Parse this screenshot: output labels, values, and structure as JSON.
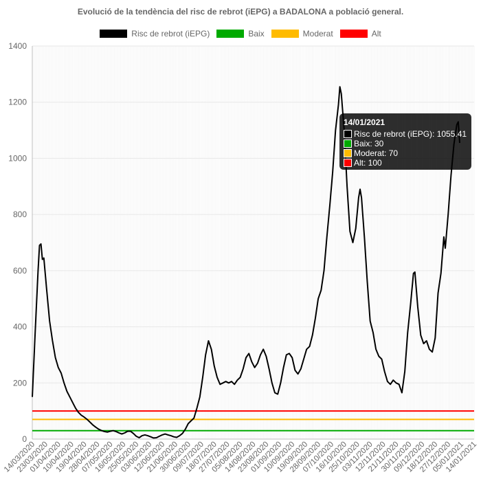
{
  "chart_data": {
    "type": "line",
    "title": "Evolució de la tendència del risc de rebrot (iEPG) a BADALONA a població general.",
    "ylim": [
      0,
      1400
    ],
    "yticks": [
      0,
      200,
      400,
      600,
      800,
      1000,
      1200,
      1400
    ],
    "grid": true,
    "legend_position": "top",
    "x_start": "14/03/2020",
    "x_end": "14/01/2021",
    "xtick_labels": [
      "14/03/2020",
      "23/03/2020",
      "01/04/2020",
      "10/04/2020",
      "19/04/2020",
      "28/04/2020",
      "07/05/2020",
      "16/05/2020",
      "25/05/2020",
      "03/06/2020",
      "12/06/2020",
      "21/06/2020",
      "30/06/2020",
      "09/07/2020",
      "18/07/2020",
      "27/07/2020",
      "05/08/2020",
      "14/08/2020",
      "23/08/2020",
      "01/09/2020",
      "10/09/2020",
      "19/09/2020",
      "28/09/2020",
      "07/10/2020",
      "16/10/2020",
      "25/10/2020",
      "03/11/2020",
      "12/11/2020",
      "21/11/2020",
      "30/11/2020",
      "09/12/2020",
      "18/12/2020",
      "27/12/2020",
      "05/01/2021",
      "14/01/2021"
    ],
    "series": [
      {
        "name": "Risc de rebrot (iEPG)",
        "color": "#000000",
        "points": [
          [
            "14/03/2020",
            150
          ],
          [
            "16/03/2020",
            380
          ],
          [
            "18/03/2020",
            600
          ],
          [
            "19/03/2020",
            690
          ],
          [
            "20/03/2020",
            695
          ],
          [
            "21/03/2020",
            640
          ],
          [
            "22/03/2020",
            645
          ],
          [
            "24/03/2020",
            530
          ],
          [
            "26/03/2020",
            420
          ],
          [
            "28/03/2020",
            350
          ],
          [
            "30/03/2020",
            290
          ],
          [
            "01/04/2020",
            255
          ],
          [
            "03/04/2020",
            235
          ],
          [
            "05/04/2020",
            200
          ],
          [
            "07/04/2020",
            170
          ],
          [
            "09/04/2020",
            150
          ],
          [
            "11/04/2020",
            130
          ],
          [
            "13/04/2020",
            110
          ],
          [
            "15/04/2020",
            95
          ],
          [
            "17/04/2020",
            85
          ],
          [
            "19/04/2020",
            78
          ],
          [
            "21/04/2020",
            70
          ],
          [
            "23/04/2020",
            60
          ],
          [
            "25/04/2020",
            50
          ],
          [
            "27/04/2020",
            42
          ],
          [
            "29/04/2020",
            35
          ],
          [
            "01/05/2020",
            30
          ],
          [
            "03/05/2020",
            27
          ],
          [
            "05/05/2020",
            25
          ],
          [
            "07/05/2020",
            28
          ],
          [
            "09/05/2020",
            30
          ],
          [
            "11/05/2020",
            27
          ],
          [
            "13/05/2020",
            22
          ],
          [
            "15/05/2020",
            18
          ],
          [
            "17/05/2020",
            22
          ],
          [
            "19/05/2020",
            28
          ],
          [
            "21/05/2020",
            28
          ],
          [
            "23/05/2020",
            20
          ],
          [
            "25/05/2020",
            10
          ],
          [
            "27/05/2020",
            5
          ],
          [
            "29/05/2020",
            12
          ],
          [
            "31/05/2020",
            15
          ],
          [
            "02/06/2020",
            12
          ],
          [
            "04/06/2020",
            8
          ],
          [
            "06/06/2020",
            4
          ],
          [
            "08/06/2020",
            5
          ],
          [
            "10/06/2020",
            10
          ],
          [
            "12/06/2020",
            15
          ],
          [
            "14/06/2020",
            18
          ],
          [
            "16/06/2020",
            15
          ],
          [
            "18/06/2020",
            12
          ],
          [
            "20/06/2020",
            8
          ],
          [
            "22/06/2020",
            6
          ],
          [
            "24/06/2020",
            12
          ],
          [
            "26/06/2020",
            20
          ],
          [
            "28/06/2020",
            35
          ],
          [
            "30/06/2020",
            55
          ],
          [
            "02/07/2020",
            65
          ],
          [
            "04/07/2020",
            75
          ],
          [
            "06/07/2020",
            110
          ],
          [
            "08/07/2020",
            150
          ],
          [
            "10/07/2020",
            220
          ],
          [
            "12/07/2020",
            300
          ],
          [
            "14/07/2020",
            350
          ],
          [
            "16/07/2020",
            320
          ],
          [
            "18/07/2020",
            260
          ],
          [
            "20/07/2020",
            220
          ],
          [
            "22/07/2020",
            195
          ],
          [
            "24/07/2020",
            200
          ],
          [
            "26/07/2020",
            205
          ],
          [
            "28/07/2020",
            200
          ],
          [
            "30/07/2020",
            205
          ],
          [
            "01/08/2020",
            195
          ],
          [
            "03/08/2020",
            210
          ],
          [
            "05/08/2020",
            220
          ],
          [
            "07/08/2020",
            250
          ],
          [
            "09/08/2020",
            290
          ],
          [
            "11/08/2020",
            305
          ],
          [
            "13/08/2020",
            275
          ],
          [
            "15/08/2020",
            255
          ],
          [
            "17/08/2020",
            270
          ],
          [
            "19/08/2020",
            300
          ],
          [
            "21/08/2020",
            320
          ],
          [
            "23/08/2020",
            295
          ],
          [
            "25/08/2020",
            250
          ],
          [
            "27/08/2020",
            200
          ],
          [
            "29/08/2020",
            165
          ],
          [
            "31/08/2020",
            160
          ],
          [
            "02/09/2020",
            200
          ],
          [
            "04/09/2020",
            255
          ],
          [
            "06/09/2020",
            300
          ],
          [
            "08/09/2020",
            305
          ],
          [
            "10/09/2020",
            290
          ],
          [
            "12/09/2020",
            245
          ],
          [
            "14/09/2020",
            232
          ],
          [
            "16/09/2020",
            250
          ],
          [
            "18/09/2020",
            285
          ],
          [
            "20/09/2020",
            320
          ],
          [
            "22/09/2020",
            330
          ],
          [
            "24/09/2020",
            370
          ],
          [
            "26/09/2020",
            430
          ],
          [
            "28/09/2020",
            500
          ],
          [
            "30/09/2020",
            530
          ],
          [
            "02/10/2020",
            600
          ],
          [
            "04/10/2020",
            720
          ],
          [
            "06/10/2020",
            830
          ],
          [
            "08/10/2020",
            950
          ],
          [
            "10/10/2020",
            1100
          ],
          [
            "12/10/2020",
            1190
          ],
          [
            "13/10/2020",
            1255
          ],
          [
            "14/10/2020",
            1230
          ],
          [
            "16/10/2020",
            1100
          ],
          [
            "18/10/2020",
            900
          ],
          [
            "20/10/2020",
            740
          ],
          [
            "22/10/2020",
            700
          ],
          [
            "24/10/2020",
            750
          ],
          [
            "26/10/2020",
            860
          ],
          [
            "27/10/2020",
            890
          ],
          [
            "28/10/2020",
            860
          ],
          [
            "30/10/2020",
            720
          ],
          [
            "01/11/2020",
            560
          ],
          [
            "03/11/2020",
            420
          ],
          [
            "05/11/2020",
            380
          ],
          [
            "07/11/2020",
            320
          ],
          [
            "09/11/2020",
            295
          ],
          [
            "11/11/2020",
            285
          ],
          [
            "13/11/2020",
            240
          ],
          [
            "15/11/2020",
            205
          ],
          [
            "17/11/2020",
            195
          ],
          [
            "19/11/2020",
            210
          ],
          [
            "21/11/2020",
            200
          ],
          [
            "23/11/2020",
            195
          ],
          [
            "25/11/2020",
            165
          ],
          [
            "27/11/2020",
            240
          ],
          [
            "29/11/2020",
            380
          ],
          [
            "01/12/2020",
            480
          ],
          [
            "03/12/2020",
            590
          ],
          [
            "04/12/2020",
            595
          ],
          [
            "06/12/2020",
            470
          ],
          [
            "08/12/2020",
            370
          ],
          [
            "10/12/2020",
            340
          ],
          [
            "12/12/2020",
            350
          ],
          [
            "14/12/2020",
            320
          ],
          [
            "16/12/2020",
            310
          ],
          [
            "18/12/2020",
            360
          ],
          [
            "20/12/2020",
            520
          ],
          [
            "22/12/2020",
            590
          ],
          [
            "24/12/2020",
            720
          ],
          [
            "25/12/2020",
            680
          ],
          [
            "27/12/2020",
            800
          ],
          [
            "29/12/2020",
            940
          ],
          [
            "31/12/2020",
            1050
          ],
          [
            "02/01/2021",
            1120
          ],
          [
            "03/01/2021",
            1130
          ],
          [
            "04/01/2021",
            1055
          ]
        ]
      },
      {
        "name": "Baix",
        "color": "#00aa00",
        "value": 30
      },
      {
        "name": "Moderat",
        "color": "#ffbb00",
        "value": 70
      },
      {
        "name": "Alt",
        "color": "#ff0000",
        "value": 100
      }
    ]
  },
  "tooltip": {
    "date": "14/01/2021",
    "rows": [
      {
        "label": "Risc de rebrot (iEPG): 1055.41",
        "color": "#000000"
      },
      {
        "label": "Baix: 30",
        "color": "#00aa00"
      },
      {
        "label": "Moderat: 70",
        "color": "#ffbb00"
      },
      {
        "label": "Alt: 100",
        "color": "#ff0000"
      }
    ]
  }
}
